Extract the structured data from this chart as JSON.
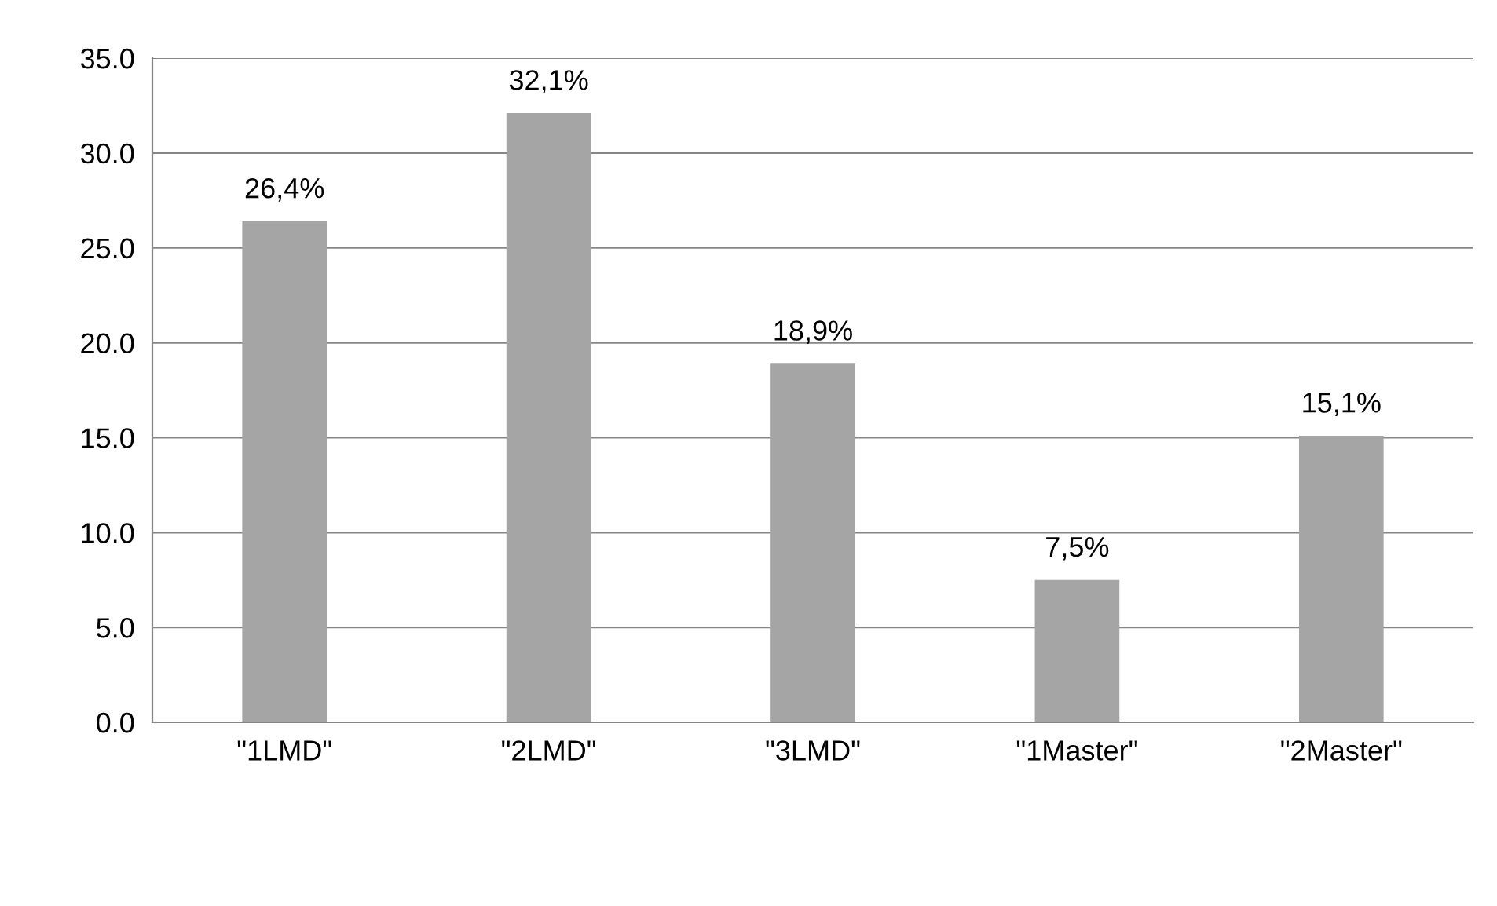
{
  "chart_data": {
    "type": "bar",
    "categories": [
      "\"1LMD\"",
      "\"2LMD\"",
      "\"3LMD\"",
      "\"1Master\"",
      "\"2Master\""
    ],
    "values": [
      26.4,
      32.1,
      18.9,
      7.5,
      15.1
    ],
    "value_labels": [
      "26,4%",
      "32,1%",
      "18,9%",
      "7,5%",
      "15,1%"
    ],
    "color": "#a5a5a5",
    "ylim": [
      0,
      35
    ],
    "yticks": [
      {
        "value": 0,
        "label": "0.0"
      },
      {
        "value": 5,
        "label": "5.0"
      },
      {
        "value": 10,
        "label": "10.0"
      },
      {
        "value": 15,
        "label": "15.0"
      },
      {
        "value": 20,
        "label": "20.0"
      },
      {
        "value": 25,
        "label": "25.0"
      },
      {
        "value": 30,
        "label": "30.0"
      },
      {
        "value": 35,
        "label": "35.0"
      }
    ],
    "grid": "y",
    "legend": false
  }
}
